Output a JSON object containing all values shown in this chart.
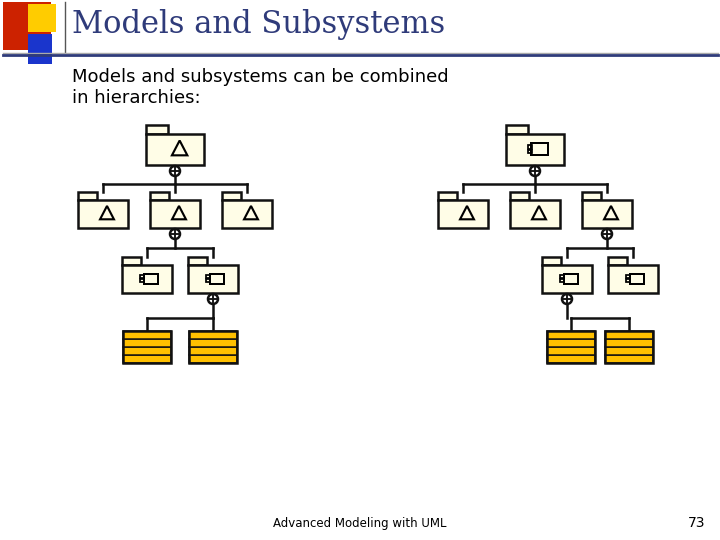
{
  "title": "Models and Subsystems",
  "subtitle": "Models and subsystems can be combined\nin hierarchies:",
  "title_color": "#2f3b7a",
  "title_fontsize": 22,
  "subtitle_fontsize": 13,
  "bg_color": "#ffffff",
  "folder_fill": "#fffde7",
  "folder_stroke": "#111111",
  "table_fill_dark": "#ffc000",
  "table_stroke": "#111111",
  "connector_color": "#111111",
  "footer_text": "Advanced Modeling with UML",
  "footer_num": "73",
  "lw": 1.8
}
